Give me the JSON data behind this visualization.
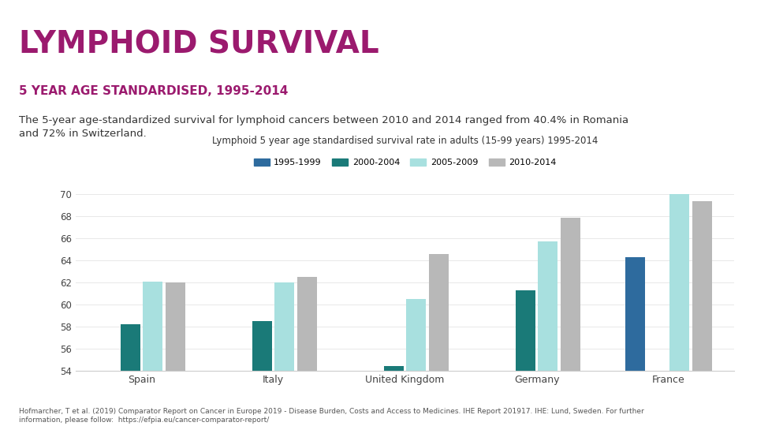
{
  "title": "LYMPHOID SURVIVAL",
  "subtitle": "5 YEAR AGE STANDARDISED, 1995-2014",
  "description": "The 5-year age-standardized survival for lymphoid cancers between 2010 and 2014 ranged from 40.4% in Romania\nand 72% in Switzerland.",
  "chart_title": "Lymphoid 5 year age standardised survival rate in adults (15-99 years) 1995-2014",
  "footnote": "Hofmarcher, T et al. (2019) Comparator Report on Cancer in Europe 2019 - Disease Burden, Costs and Access to Medicines. IHE Report 201917. IHE: Lund, Sweden. For further\ninformation, please follow:  https://efpia.eu/cancer-comparator-report/",
  "categories": [
    "Spain",
    "Italy",
    "United Kingdom",
    "Germany",
    "France"
  ],
  "series": [
    {
      "label": "1995-1999",
      "color": "#2e6b9e",
      "values": [
        null,
        null,
        null,
        null,
        64.3
      ]
    },
    {
      "label": "2000-2004",
      "color": "#1a7a78",
      "values": [
        58.2,
        58.5,
        54.4,
        61.3,
        null
      ]
    },
    {
      "label": "2005-2009",
      "color": "#a8e0df",
      "values": [
        62.1,
        62.0,
        60.5,
        65.7,
        70.0
      ]
    },
    {
      "label": "2010-2014",
      "color": "#b8b8b8",
      "values": [
        62.0,
        62.5,
        64.6,
        67.9,
        69.4
      ]
    }
  ],
  "ylim": [
    54,
    71
  ],
  "yticks": [
    54,
    56,
    58,
    60,
    62,
    64,
    66,
    68,
    70
  ],
  "title_color": "#9b1a6e",
  "subtitle_color": "#9b1a6e",
  "description_color": "#333333",
  "background_color": "#ffffff",
  "title_fontsize": 28,
  "subtitle_fontsize": 11,
  "description_fontsize": 9.5,
  "chart_title_fontsize": 8.5,
  "footnote_fontsize": 6.5
}
